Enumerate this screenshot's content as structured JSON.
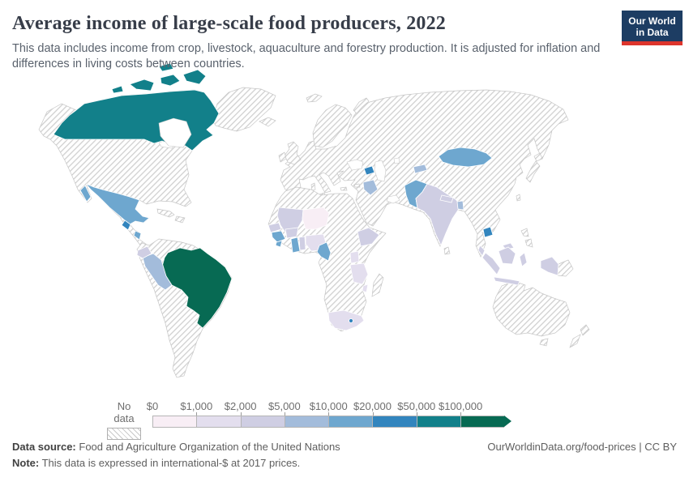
{
  "header": {
    "title": "Average income of large-scale food producers, 2022",
    "subtitle": "This data includes income from crop, livestock, aquaculture and forestry production. It is adjusted for inflation and differences in living costs between countries.",
    "logo": {
      "line1": "Our World",
      "line2": "in Data",
      "bg_color": "#1d3d63",
      "accent_color": "#dd352c"
    }
  },
  "legend": {
    "no_data_label": "No data",
    "bins": [
      {
        "label": "$0",
        "color": "#f8eef5"
      },
      {
        "label": "$1,000",
        "color": "#e3deee"
      },
      {
        "label": "$2,000",
        "color": "#cfcee3"
      },
      {
        "label": "$5,000",
        "color": "#a3bcdb"
      },
      {
        "label": "$10,000",
        "color": "#6ea7cf"
      },
      {
        "label": "$20,000",
        "color": "#3285be"
      },
      {
        "label": "$50,000",
        "color": "#12808a"
      },
      {
        "label": "$100,000",
        "color": "#076a53"
      }
    ]
  },
  "footer": {
    "data_source_label": "Data source:",
    "data_source_value": "Food and Agriculture Organization of the United Nations",
    "note_label": "Note:",
    "note_value": "This data is expressed in international-$ at 2017 prices.",
    "attribution": "OurWorldinData.org/food-prices | CC BY"
  },
  "chart_data": {
    "type": "choropleth_map",
    "title": "Average income of large-scale food producers, 2022",
    "unit": "international-$ at 2017 prices",
    "legend_position": "bottom",
    "bin_edges_labels": [
      "$0",
      "$1,000",
      "$2,000",
      "$5,000",
      "$10,000",
      "$20,000",
      "$50,000",
      "$100,000"
    ],
    "no_data_style": "hatched",
    "no_data_regions_examples": "United States, Greenland, most of Europe, Russia, China, Kazakhstan, Turkey, Iran, Saudi Arabia, Egypt, Sudan, DR Congo, Colombia, Venezuela, Bolivia, Argentina, Chile, Australia, New Zealand, Japan, Philippines, Madagascar",
    "countries": [
      {
        "name": "Canada",
        "value_range": "$50,000–$100,000",
        "bin": 7
      },
      {
        "name": "Brazil",
        "value_range": "$100,000+",
        "bin": 8
      },
      {
        "name": "Mexico",
        "value_range": "$10,000–$20,000",
        "bin": 5
      },
      {
        "name": "Guatemala",
        "value_range": "$20,000–$50,000",
        "bin": 6
      },
      {
        "name": "Nicaragua",
        "value_range": "$10,000–$20,000",
        "bin": 5
      },
      {
        "name": "Peru",
        "value_range": "$5,000–$10,000",
        "bin": 4
      },
      {
        "name": "Ecuador",
        "value_range": "$2,000–$5,000",
        "bin": 3
      },
      {
        "name": "Niger",
        "value_range": "$0–$1,000",
        "bin": 1
      },
      {
        "name": "Mali",
        "value_range": "$2,000–$5,000",
        "bin": 3
      },
      {
        "name": "Senegal",
        "value_range": "$2,000–$5,000",
        "bin": 3
      },
      {
        "name": "Guinea",
        "value_range": "$10,000–$20,000",
        "bin": 5
      },
      {
        "name": "Sierra Leone",
        "value_range": "$10,000–$20,000",
        "bin": 5
      },
      {
        "name": "Burkina Faso",
        "value_range": "$2,000–$5,000",
        "bin": 3
      },
      {
        "name": "Ghana",
        "value_range": "$10,000–$20,000",
        "bin": 5
      },
      {
        "name": "Benin",
        "value_range": "$2,000–$5,000",
        "bin": 3
      },
      {
        "name": "Nigeria",
        "value_range": "$1,000–$2,000",
        "bin": 2
      },
      {
        "name": "Cameroon",
        "value_range": "$10,000–$20,000",
        "bin": 5
      },
      {
        "name": "Ethiopia",
        "value_range": "$2,000–$5,000",
        "bin": 3
      },
      {
        "name": "Uganda",
        "value_range": "$1,000–$2,000",
        "bin": 2
      },
      {
        "name": "Tanzania",
        "value_range": "$1,000–$2,000",
        "bin": 2
      },
      {
        "name": "Malawi",
        "value_range": "$1,000–$2,000",
        "bin": 2
      },
      {
        "name": "South Africa",
        "value_range": "$1,000–$2,000",
        "bin": 2
      },
      {
        "name": "Lesotho",
        "value_range": "$20,000–$50,000",
        "bin": 6
      },
      {
        "name": "Iraq",
        "value_range": "$5,000–$10,000",
        "bin": 4
      },
      {
        "name": "Azerbaijan",
        "value_range": "$20,000–$50,000",
        "bin": 6
      },
      {
        "name": "Kyrgyzstan",
        "value_range": "$5,000–$10,000",
        "bin": 4
      },
      {
        "name": "Mongolia",
        "value_range": "$10,000–$20,000",
        "bin": 5
      },
      {
        "name": "Pakistan",
        "value_range": "$10,000–$20,000",
        "bin": 5
      },
      {
        "name": "India",
        "value_range": "$2,000–$5,000",
        "bin": 3
      },
      {
        "name": "Nepal",
        "value_range": "$2,000–$5,000",
        "bin": 3
      },
      {
        "name": "Bangladesh",
        "value_range": "$5,000–$10,000",
        "bin": 4
      },
      {
        "name": "Cambodia",
        "value_range": "$20,000–$50,000",
        "bin": 6
      },
      {
        "name": "Indonesia",
        "value_range": "$2,000–$5,000",
        "bin": 3
      },
      {
        "name": "Malaysia",
        "value_range": "$2,000–$5,000",
        "bin": 3
      }
    ]
  }
}
